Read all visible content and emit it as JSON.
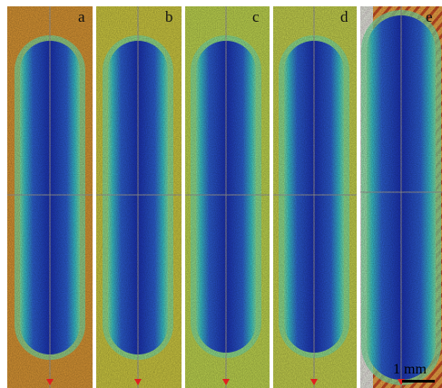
{
  "panels": [
    {
      "label": "a",
      "bg": "#d4902e",
      "bg2": "#e0a040"
    },
    {
      "label": "b",
      "bg": "#c8c33a",
      "bg2": "#d8d050"
    },
    {
      "label": "c",
      "bg": "#b8d04a",
      "bg2": "#c8dc5a"
    },
    {
      "label": "d",
      "bg": "#c0cc48",
      "bg2": "#ccd858"
    },
    {
      "label": "e",
      "bg": "#e08a2e",
      "bg2": "#f0a848"
    }
  ],
  "scale_bar": {
    "label": "1 mm"
  },
  "colors": {
    "channel_core": "#1a2fb0",
    "channel_inner": "#2c5fd0",
    "channel_edge": "#38c0c8",
    "channel_rim": "#7ee0a0",
    "crosshair": "#9a9a9a",
    "marker": "#e02020"
  }
}
